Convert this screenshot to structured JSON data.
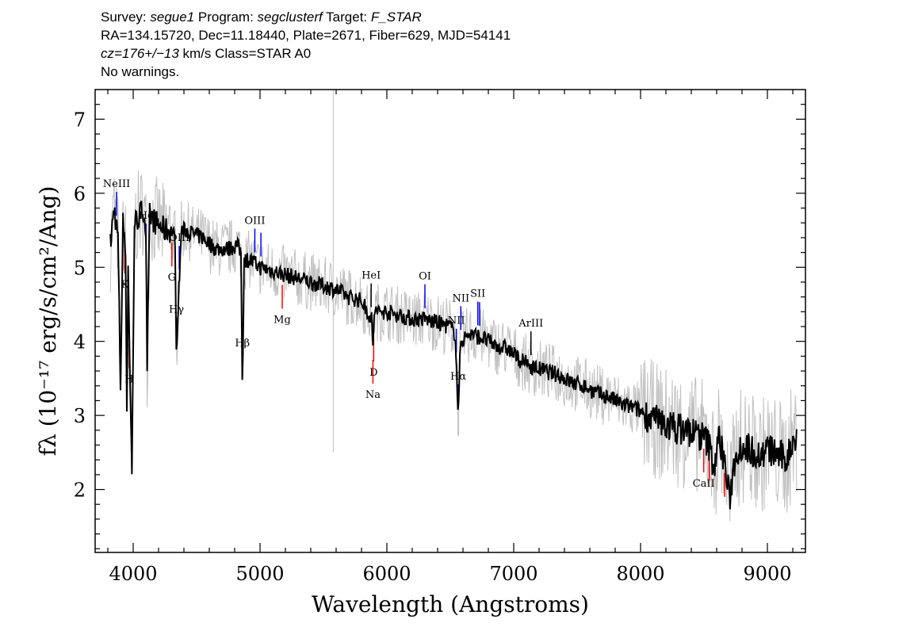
{
  "header": {
    "survey_label": "Survey:",
    "survey": "segue1",
    "program_label": "Program:",
    "program": "segclusterf",
    "target_label": "Target:",
    "target": "F_STAR",
    "line2": "RA=134.15720, Dec=11.18440, Plate=2671, Fiber=629, MJD=54141",
    "cz": "cz=176+/−13",
    "cz_rest": " km/s Class=STAR A0",
    "warnings": "No warnings."
  },
  "chart_data": {
    "type": "line",
    "title": "",
    "xlabel": "Wavelength (Angstroms)",
    "ylabel": "fλ (10⁻¹⁷ erg/s/cm²/Ang)",
    "xlim": [
      3700,
      9300
    ],
    "ylim": [
      1.15,
      7.4
    ],
    "xticks": [
      4000,
      5000,
      6000,
      7000,
      8000,
      9000
    ],
    "yticks": [
      2,
      3,
      4,
      5,
      6,
      7
    ],
    "grid": false,
    "colors": {
      "flux": "#000000",
      "noise": "#c0c0c0",
      "emission": "#0000ff",
      "absorption": "#ff0000",
      "stellar": "#000000"
    },
    "flux_series": {
      "name": "flux",
      "x": [
        3820,
        3850,
        3880,
        3900,
        3920,
        3940,
        3950,
        3960,
        3970,
        3990,
        4010,
        4050,
        4080,
        4100,
        4110,
        4130,
        4180,
        4250,
        4300,
        4330,
        4340,
        4350,
        4380,
        4420,
        4470,
        4550,
        4650,
        4750,
        4820,
        4850,
        4861,
        4875,
        4920,
        5000,
        5100,
        5200,
        5300,
        5400,
        5500,
        5600,
        5700,
        5800,
        5880,
        5890,
        5900,
        5950,
        6000,
        6100,
        6200,
        6300,
        6400,
        6500,
        6540,
        6563,
        6580,
        6650,
        6750,
        6850,
        6950,
        7050,
        7150,
        7250,
        7350,
        7450,
        7550,
        7650,
        7750,
        7850,
        7950,
        8050,
        8150,
        8250,
        8350,
        8450,
        8500,
        8540,
        8580,
        8620,
        8660,
        8700,
        8750,
        8800,
        8850,
        8900,
        8950,
        9000,
        9050,
        9100,
        9150,
        9200,
        9230
      ],
      "values": [
        5.3,
        5.8,
        5.4,
        3.4,
        5.6,
        5.3,
        2.9,
        5.1,
        4.0,
        2.2,
        5.6,
        5.7,
        5.8,
        5.5,
        3.6,
        5.7,
        5.6,
        5.5,
        5.5,
        5.4,
        3.8,
        4.3,
        5.5,
        5.5,
        5.45,
        5.4,
        5.25,
        5.25,
        5.3,
        5.2,
        3.4,
        5.1,
        5.1,
        5.0,
        4.95,
        4.9,
        4.85,
        4.8,
        4.75,
        4.7,
        4.6,
        4.55,
        4.3,
        3.9,
        4.4,
        4.4,
        4.4,
        4.35,
        4.3,
        4.3,
        4.25,
        4.2,
        4.1,
        2.95,
        4.0,
        4.1,
        4.05,
        3.95,
        3.9,
        3.75,
        3.65,
        3.6,
        3.55,
        3.45,
        3.4,
        3.3,
        3.25,
        3.15,
        3.1,
        3.0,
        2.9,
        2.85,
        2.8,
        2.75,
        2.7,
        2.6,
        2.3,
        2.7,
        2.4,
        1.85,
        2.5,
        2.6,
        2.55,
        2.5,
        2.45,
        2.55,
        2.5,
        2.45,
        2.4,
        2.65,
        2.7
      ]
    },
    "lines": [
      {
        "label": "NeIII",
        "x": 3869,
        "group": "emission"
      },
      {
        "label": "Hδ",
        "x": 4102,
        "group": "emission"
      },
      {
        "label": "Hγ",
        "x": 4341,
        "group": "emission"
      },
      {
        "label": "OIII",
        "x": 4363,
        "group": "emission"
      },
      {
        "label": "Hβ",
        "x": 4861,
        "group": "stellar"
      },
      {
        "label": "OIII",
        "x": 4959,
        "group": "emission"
      },
      {
        "label": "",
        "x": 5007,
        "group": "emission"
      },
      {
        "label": "HeI",
        "x": 5876,
        "group": "stellar"
      },
      {
        "label": "OI",
        "x": 6300,
        "group": "emission"
      },
      {
        "label": "NII",
        "x": 6548,
        "group": "emission"
      },
      {
        "label": "Hα",
        "x": 6563,
        "group": "emission"
      },
      {
        "label": "NII",
        "x": 6583,
        "group": "emission"
      },
      {
        "label": "SII",
        "x": 6717,
        "group": "emission"
      },
      {
        "label": "",
        "x": 6731,
        "group": "emission"
      },
      {
        "label": "ArIII",
        "x": 7136,
        "group": "stellar"
      },
      {
        "label": "Mg",
        "x": 5175,
        "group": "absorption"
      },
      {
        "label": "G",
        "x": 4305,
        "group": "absorption"
      },
      {
        "label": "Na",
        "x": 5890,
        "group": "absorption"
      },
      {
        "label": "D",
        "x": 5896,
        "group": "absorption"
      },
      {
        "label": "K",
        "x": 3934,
        "group": "absorption"
      },
      {
        "label": "H",
        "x": 3969,
        "group": "absorption"
      },
      {
        "label": "CaII",
        "x": 8498,
        "group": "absorption"
      },
      {
        "label": "",
        "x": 8542,
        "group": "absorption"
      },
      {
        "label": "",
        "x": 8662,
        "group": "absorption"
      }
    ]
  }
}
